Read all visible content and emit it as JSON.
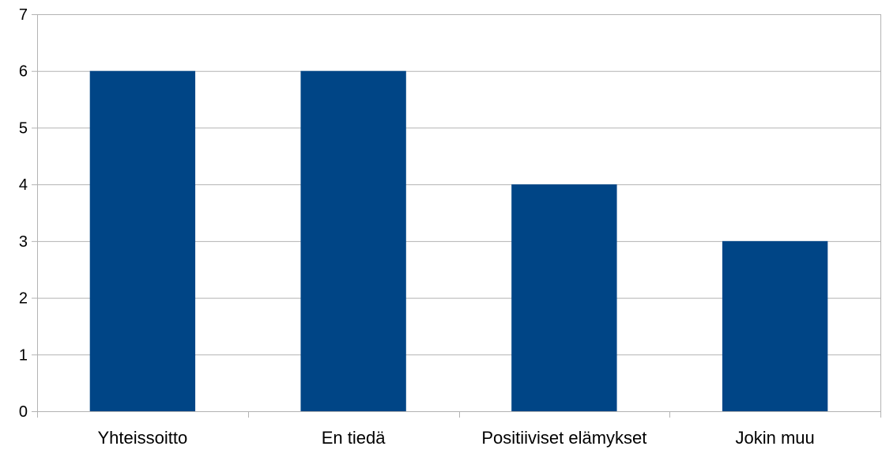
{
  "chart_data": {
    "type": "bar",
    "title": "",
    "xlabel": "",
    "ylabel": "",
    "categories": [
      "Yhteissoitto",
      "En tiedä",
      "Positiiviset elämykset",
      "Jokin muu"
    ],
    "values": [
      6,
      6,
      4,
      3
    ],
    "ylim": [
      0,
      7
    ],
    "yticks": [
      "0",
      "1",
      "2",
      "3",
      "4",
      "5",
      "6",
      "7"
    ],
    "grid": true,
    "legend": "none",
    "colors": {
      "bar": "#004586",
      "grid": "#b3b3b3",
      "axis": "#b3b3b3",
      "text": "#000000"
    }
  }
}
